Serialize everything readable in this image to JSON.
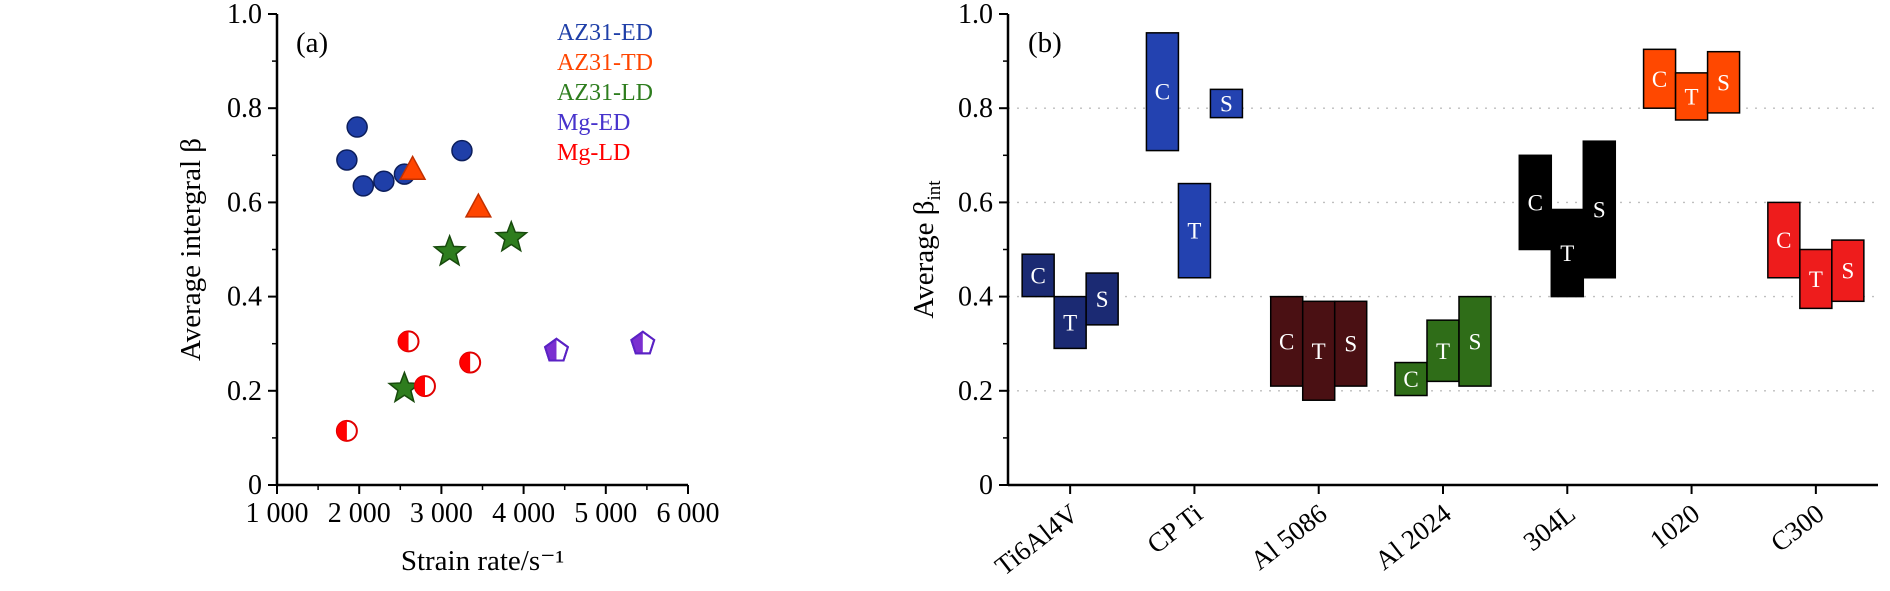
{
  "figure": {
    "background": "#ffffff"
  },
  "chart_data": [
    {
      "type": "scatter",
      "panel_label": "(a)",
      "xlabel": "Strain rate/s⁻¹",
      "ylabel": {
        "main": "Average intergral β",
        "sub": ""
      },
      "xlim": [
        1000,
        6000
      ],
      "ylim": [
        0,
        1.0
      ],
      "xticks": [
        1000,
        2000,
        3000,
        4000,
        5000,
        6000
      ],
      "xtick_labels": [
        "1 000",
        "2 000",
        "3 000",
        "4 000",
        "5 000",
        "6 000"
      ],
      "yticks": [
        0,
        0.2,
        0.4,
        0.6,
        0.8,
        1.0
      ],
      "ytick_labels": [
        "0",
        "0.2",
        "0.4",
        "0.6",
        "0.8",
        "1.0"
      ],
      "grid": false,
      "legend_position": "top-right",
      "series": [
        {
          "name": "AZ31-ED",
          "marker": "circle",
          "color": "#1F3FA8",
          "edge": "#0C1E5C",
          "points": [
            [
              1850,
              0.69
            ],
            [
              1975,
              0.76
            ],
            [
              2050,
              0.635
            ],
            [
              2300,
              0.645
            ],
            [
              2550,
              0.66
            ],
            [
              3250,
              0.71
            ]
          ]
        },
        {
          "name": "AZ31-TD",
          "marker": "triangle",
          "color": "#FF4500",
          "edge": "#C23000",
          "points": [
            [
              2650,
              0.67
            ],
            [
              3450,
              0.59
            ]
          ]
        },
        {
          "name": "AZ31-LD",
          "marker": "star",
          "color": "#2E7D1E",
          "edge": "#174A0C",
          "points": [
            [
              3100,
              0.495
            ],
            [
              3850,
              0.525
            ],
            [
              2550,
              0.205
            ]
          ]
        },
        {
          "name": "Mg-ED",
          "marker": "pentagon-half",
          "color": "#7B2FD0",
          "edge": "#5A22C4",
          "points": [
            [
              4400,
              0.285
            ],
            [
              5450,
              0.3
            ]
          ]
        },
        {
          "name": "Mg-LD",
          "marker": "circle-half",
          "color": "#FF0000",
          "edge": "#E00000",
          "points": [
            [
              1850,
              0.115
            ],
            [
              2600,
              0.305
            ],
            [
              2800,
              0.21
            ],
            [
              3350,
              0.26
            ]
          ]
        }
      ],
      "legend_colors": {
        "AZ31-ED": "#1F3FA8",
        "AZ31-TD": "#FF4500",
        "AZ31-LD": "#2E7D1E",
        "Mg-ED": "#4733CC",
        "Mg-LD": "#FF0000"
      }
    },
    {
      "type": "floating-bar",
      "panel_label": "(b)",
      "xlabel": "",
      "ylabel": {
        "main": "Average β",
        "sub": "int"
      },
      "ylim": [
        0,
        1.0
      ],
      "yticks": [
        0,
        0.2,
        0.4,
        0.6,
        0.8,
        1.0
      ],
      "ytick_labels": [
        "0",
        "0.2",
        "0.4",
        "0.6",
        "0.8",
        "1.0"
      ],
      "gridlines": [
        0.2,
        0.4,
        0.6,
        0.8
      ],
      "grid_style": "dashed",
      "categories": [
        "Ti6Al4V",
        "CP Ti",
        "Al 5086",
        "Al 2024",
        "304L",
        "1020",
        "C300"
      ],
      "groups": [
        {
          "category": "Ti6Al4V",
          "color": "#1B2A73",
          "bars": [
            {
              "label": "C",
              "low": 0.4,
              "high": 0.49
            },
            {
              "label": "T",
              "low": 0.29,
              "high": 0.4
            },
            {
              "label": "S",
              "low": 0.34,
              "high": 0.45
            }
          ]
        },
        {
          "category": "CP Ti",
          "color": "#2342B0",
          "bars": [
            {
              "label": "C",
              "low": 0.71,
              "high": 0.96
            },
            {
              "label": "T",
              "low": 0.44,
              "high": 0.64
            },
            {
              "label": "S",
              "low": 0.78,
              "high": 0.84
            }
          ]
        },
        {
          "category": "Al 5086",
          "color": "#4A1013",
          "bars": [
            {
              "label": "C",
              "low": 0.21,
              "high": 0.4
            },
            {
              "label": "T",
              "low": 0.18,
              "high": 0.39
            },
            {
              "label": "S",
              "low": 0.21,
              "high": 0.39
            }
          ]
        },
        {
          "category": "Al 2024",
          "color": "#2F6D18",
          "bars": [
            {
              "label": "C",
              "low": 0.19,
              "high": 0.26
            },
            {
              "label": "T",
              "low": 0.22,
              "high": 0.35
            },
            {
              "label": "S",
              "low": 0.21,
              "high": 0.4
            }
          ]
        },
        {
          "category": "304L",
          "color": "#000000",
          "bars": [
            {
              "label": "C",
              "low": 0.5,
              "high": 0.7
            },
            {
              "label": "T",
              "low": 0.4,
              "high": 0.585
            },
            {
              "label": "S",
              "low": 0.44,
              "high": 0.73
            }
          ]
        },
        {
          "category": "1020",
          "color": "#FF4800",
          "bars": [
            {
              "label": "C",
              "low": 0.8,
              "high": 0.925
            },
            {
              "label": "T",
              "low": 0.775,
              "high": 0.875
            },
            {
              "label": "S",
              "low": 0.79,
              "high": 0.92
            }
          ]
        },
        {
          "category": "C300",
          "color": "#EE1C1C",
          "bars": [
            {
              "label": "C",
              "low": 0.44,
              "high": 0.6
            },
            {
              "label": "T",
              "low": 0.375,
              "high": 0.5
            },
            {
              "label": "S",
              "low": 0.39,
              "high": 0.52
            }
          ]
        }
      ]
    }
  ]
}
